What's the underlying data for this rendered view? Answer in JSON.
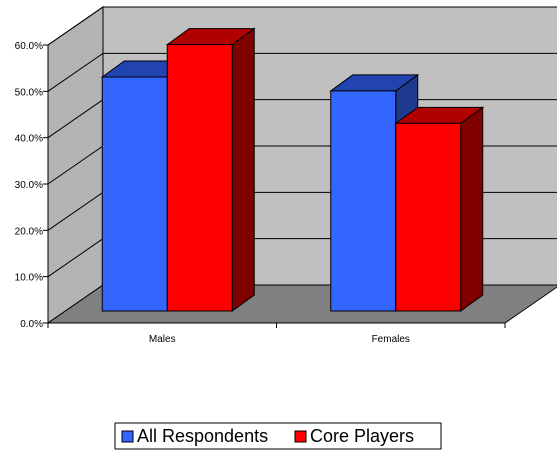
{
  "chart_data": {
    "type": "bar",
    "title": "",
    "xlabel": "",
    "ylabel": "",
    "categories": [
      "Males",
      "Females"
    ],
    "series": [
      {
        "name": "All Respondents",
        "values": [
          50.5,
          47.5
        ]
      },
      {
        "name": "Core Players",
        "values": [
          57.5,
          40.5
        ]
      }
    ],
    "ylim": [
      0,
      60
    ],
    "yticks": [
      "0.0%",
      "10.0%",
      "20.0%",
      "30.0%",
      "40.0%",
      "50.0%",
      "60.0%"
    ],
    "grid": true,
    "three_d": true,
    "legend": "bottom",
    "colors": {
      "series_front": [
        "#3366FF",
        "#FF0000"
      ],
      "series_top": [
        "#2244B0",
        "#B00000"
      ],
      "series_side": [
        "#1E3A8F",
        "#800000"
      ],
      "back_wall": "#C0C0C0",
      "side_wall": "#B4B4B4",
      "floor": "#808080"
    }
  }
}
